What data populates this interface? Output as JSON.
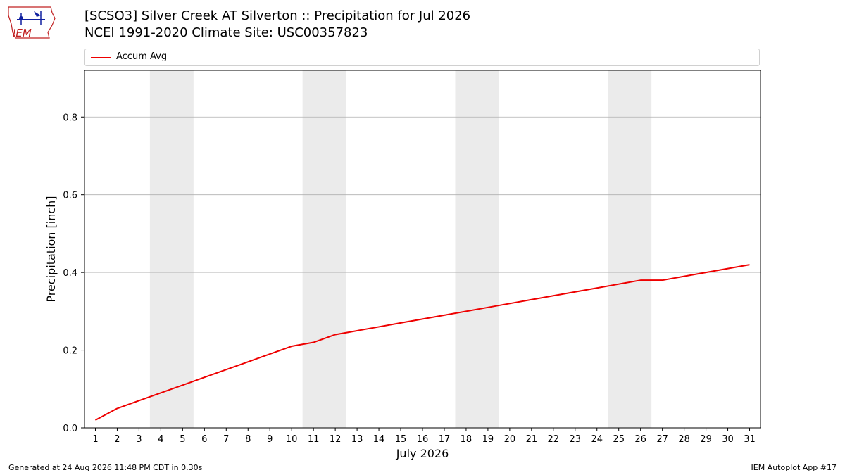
{
  "header": {
    "logo_text": "IEM",
    "title_line1": "[SCSO3] Silver Creek  AT Silverton :: Precipitation for Jul 2026",
    "title_line2": "NCEI 1991-2020 Climate Site: USC00357823"
  },
  "footer": {
    "generated": "Generated at 24 Aug 2026 11:48 PM CDT in 0.30s",
    "app": "IEM Autoplot App #17"
  },
  "colors": {
    "line": "#ee0000",
    "weekend_shade": "#ebebeb",
    "grid": "#b0b0b0"
  },
  "chart_data": {
    "type": "line",
    "title": "[SCSO3] Silver Creek  AT Silverton :: Precipitation for Jul 2026",
    "subtitle": "NCEI 1991-2020 Climate Site: USC00357823",
    "xlabel": "July 2026",
    "ylabel": "Precipitation [inch]",
    "x": [
      1,
      2,
      3,
      4,
      5,
      6,
      7,
      8,
      9,
      10,
      11,
      12,
      13,
      14,
      15,
      16,
      17,
      18,
      19,
      20,
      21,
      22,
      23,
      24,
      25,
      26,
      27,
      28,
      29,
      30,
      31
    ],
    "x_tick_labels": [
      "1",
      "2",
      "3",
      "4",
      "5",
      "6",
      "7",
      "8",
      "9",
      "10",
      "11",
      "12",
      "13",
      "14",
      "15",
      "16",
      "17",
      "18",
      "19",
      "20",
      "21",
      "22",
      "23",
      "24",
      "25",
      "26",
      "27",
      "28",
      "29",
      "30",
      "31"
    ],
    "xlim": [
      0.5,
      31.5
    ],
    "ylim": [
      0,
      0.92
    ],
    "y_ticks": [
      0.0,
      0.2,
      0.4,
      0.6,
      0.8
    ],
    "y_tick_labels": [
      "0.0",
      "0.2",
      "0.4",
      "0.6",
      "0.8"
    ],
    "grid": "y",
    "legend": "top",
    "weekend_shading": [
      [
        3.5,
        5.5
      ],
      [
        10.5,
        12.5
      ],
      [
        17.5,
        19.5
      ],
      [
        24.5,
        26.5
      ]
    ],
    "series": [
      {
        "name": "Accum Avg",
        "values": [
          0.02,
          0.05,
          0.07,
          0.09,
          0.11,
          0.13,
          0.15,
          0.17,
          0.19,
          0.21,
          0.22,
          0.24,
          0.25,
          0.26,
          0.27,
          0.28,
          0.29,
          0.3,
          0.31,
          0.32,
          0.33,
          0.34,
          0.35,
          0.36,
          0.37,
          0.38,
          0.38,
          0.39,
          0.4,
          0.41,
          0.42
        ]
      }
    ]
  }
}
